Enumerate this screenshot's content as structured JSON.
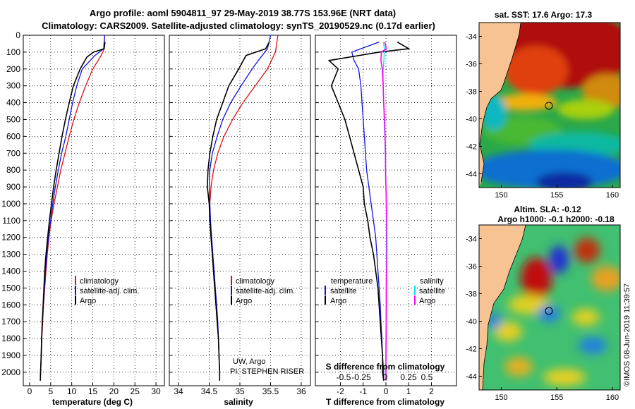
{
  "header": {
    "line1": "Argo profile: aoml 5904811_97 29-May-2019 38.77S 153.96E (NRT data)",
    "line2": "Climatology: CARS2009. Satellite-adjusted climatology: synTS_20190529.nc (0.17d earlier)"
  },
  "colors": {
    "argo": "#000000",
    "climatology": "#e01010",
    "satellite": "#1010e0",
    "salinity_sat": "#00e0e0",
    "salinity_argo": "#ff00ff"
  },
  "chart_data": [
    {
      "type": "line",
      "xlabel": "temperature (deg C)",
      "ylabel": "",
      "xlim": [
        -1.5,
        32
      ],
      "ylim": [
        2080,
        0
      ],
      "xticks": [
        0,
        5,
        10,
        15,
        20,
        25,
        30
      ],
      "yticks": [
        0,
        100,
        200,
        300,
        400,
        500,
        600,
        700,
        800,
        900,
        1000,
        1100,
        1200,
        1300,
        1400,
        1500,
        1600,
        1700,
        1800,
        1900,
        2000
      ],
      "legend": "lower-right",
      "series": [
        {
          "name": "climatology",
          "color": "#e01010",
          "depth": [
            0,
            80,
            120,
            200,
            300,
            400,
            500,
            600,
            700,
            800,
            900,
            1000,
            1100,
            1200,
            1300,
            1400,
            1500,
            1600,
            1700,
            1800,
            1900,
            2000,
            2050
          ],
          "values": [
            17.8,
            17.7,
            17,
            15,
            13.3,
            11.8,
            10.5,
            9.4,
            8.4,
            7.4,
            6.6,
            5.8,
            5.1,
            4.6,
            4.2,
            3.9,
            3.6,
            3.3,
            3.1,
            2.9,
            2.8,
            2.6,
            2.55
          ]
        },
        {
          "name": "satellite-adj. clim.",
          "color": "#1010e0",
          "depth": [
            0,
            80,
            120,
            200,
            300,
            400,
            500,
            600,
            700,
            800,
            900,
            1000,
            1100,
            1200,
            1300,
            1400,
            1500,
            1600,
            1700,
            1800,
            1900,
            2000,
            2050
          ],
          "values": [
            17.8,
            17.6,
            15.5,
            12.5,
            11.2,
            10.2,
            9.4,
            8.6,
            7.6,
            6.8,
            6.1,
            5.5,
            5,
            4.5,
            4.1,
            3.8,
            3.5,
            3.25,
            3,
            2.85,
            2.75,
            2.6,
            2.55
          ]
        },
        {
          "name": "Argo",
          "color": "#000000",
          "depth": [
            40,
            80,
            100,
            130,
            200,
            300,
            400,
            500,
            600,
            700,
            800,
            900,
            1000,
            1100,
            1200,
            1300,
            1400,
            1500,
            1600,
            1700,
            1800,
            1900,
            2000,
            2050
          ],
          "values": [
            17.9,
            17.7,
            15.2,
            13.6,
            12,
            10.4,
            9.4,
            8.5,
            7.7,
            7,
            6.3,
            5.7,
            5.2,
            4.7,
            4.3,
            3.9,
            3.6,
            3.4,
            3.2,
            3,
            2.85,
            2.75,
            2.6,
            2.55
          ]
        }
      ]
    },
    {
      "type": "line",
      "xlabel": "salinity",
      "ylabel": "",
      "xlim": [
        33.85,
        36.15
      ],
      "ylim": [
        2080,
        0
      ],
      "xticks": [
        34,
        34.5,
        35,
        35.5,
        36
      ],
      "yticks": [
        0,
        100,
        200,
        300,
        400,
        500,
        600,
        700,
        800,
        900,
        1000,
        1100,
        1200,
        1300,
        1400,
        1500,
        1600,
        1700,
        1800,
        1900,
        2000
      ],
      "legend": "lower-right",
      "series": [
        {
          "name": "climatology",
          "color": "#e01010",
          "depth": [
            0,
            100,
            200,
            300,
            400,
            500,
            600,
            700,
            800,
            900,
            1000,
            1100,
            1200,
            1300,
            1400,
            1500,
            1600,
            1700,
            1800,
            1900,
            2000,
            2050
          ],
          "values": [
            35.62,
            35.58,
            35.45,
            35.25,
            35.05,
            34.88,
            34.74,
            34.64,
            34.57,
            34.53,
            34.51,
            34.52,
            34.53,
            34.55,
            34.57,
            34.59,
            34.61,
            34.63,
            34.65,
            34.66,
            34.67,
            34.67
          ]
        },
        {
          "name": "satellite-adj. clim.",
          "color": "#1010e0",
          "depth": [
            0,
            80,
            150,
            200,
            300,
            400,
            500,
            600,
            700,
            800,
            900,
            1000,
            1100,
            1200,
            1300,
            1400,
            1500,
            1600,
            1700,
            1800,
            1900,
            2000,
            2050
          ],
          "values": [
            35.5,
            35.45,
            35.3,
            35.2,
            35.02,
            34.85,
            34.72,
            34.63,
            34.55,
            34.51,
            34.5,
            34.51,
            34.52,
            34.54,
            34.56,
            34.58,
            34.6,
            34.62,
            34.64,
            34.65,
            34.66,
            34.67,
            34.67
          ]
        },
        {
          "name": "Argo",
          "color": "#000000",
          "depth": [
            40,
            80,
            120,
            200,
            300,
            400,
            500,
            600,
            700,
            800,
            900,
            1000,
            1100,
            1200,
            1300,
            1400,
            1500,
            1600,
            1700,
            1800,
            1900,
            2000,
            2050
          ],
          "values": [
            35.48,
            35.42,
            35.1,
            34.98,
            34.82,
            34.72,
            34.62,
            34.56,
            34.51,
            34.48,
            34.47,
            34.5,
            34.51,
            34.53,
            34.55,
            34.57,
            34.59,
            34.61,
            34.63,
            34.65,
            34.66,
            34.67,
            34.67
          ]
        }
      ]
    },
    {
      "type": "line",
      "xlabel": "T difference from climatology",
      "ylabel": "",
      "xlim": [
        -3.1,
        3.1
      ],
      "ylim": [
        2080,
        0
      ],
      "xticks": [
        -2,
        -1,
        0,
        1,
        2
      ],
      "s_axis_label": "S difference from climatology",
      "s_ticks": [
        "-0.5",
        "-0.25",
        "0",
        "0.25",
        "0.5"
      ],
      "yticks": [
        0,
        100,
        200,
        300,
        400,
        500,
        600,
        700,
        800,
        900,
        1000,
        1100,
        1200,
        1300,
        1400,
        1500,
        1600,
        1700,
        1800,
        1900,
        2000
      ],
      "legend": "lower",
      "legend_headers": [
        "temperature",
        "salinity"
      ],
      "series": [
        {
          "name": "satellite",
          "group": "temperature",
          "color": "#1010e0",
          "depth": [
            40,
            80,
            100,
            150,
            200,
            300,
            400,
            500,
            600,
            700,
            800,
            900,
            1000,
            1100,
            1200,
            1300,
            1400,
            1500,
            1600,
            1700,
            1800,
            1900,
            2000,
            2050
          ],
          "values": [
            -0.3,
            -1.1,
            -1.5,
            -1.4,
            -1.2,
            -1.1,
            -1.05,
            -1,
            -0.95,
            -0.9,
            -0.85,
            -0.75,
            -0.65,
            -0.55,
            -0.45,
            -0.4,
            -0.35,
            -0.3,
            -0.25,
            -0.22,
            -0.18,
            -0.15,
            -0.1,
            -0.1
          ]
        },
        {
          "name": "Argo",
          "group": "temperature",
          "color": "#000000",
          "depth": [
            40,
            80,
            100,
            150,
            200,
            300,
            400,
            500,
            600,
            700,
            800,
            900,
            1000,
            1100,
            1200,
            1300,
            1400,
            1500,
            1600,
            1700,
            1800,
            1900,
            2000,
            2050
          ],
          "values": [
            0.5,
            1,
            -0.3,
            -2.5,
            -2.1,
            -2.4,
            -2.1,
            -1.8,
            -1.6,
            -1.4,
            -1.2,
            -1,
            -0.95,
            -0.8,
            -0.7,
            -0.55,
            -0.45,
            -0.35,
            -0.3,
            -0.25,
            -0.2,
            -0.15,
            -0.15,
            -0.1
          ]
        },
        {
          "name": "satellite",
          "group": "salinity",
          "color": "#00e0e0",
          "depth": [
            40,
            80,
            150,
            200,
            300,
            400,
            500,
            600,
            700,
            800,
            900,
            1000,
            1100,
            1200,
            1300,
            1400,
            1500,
            1600,
            1700,
            1800,
            1900,
            2000,
            2050
          ],
          "values": [
            -0.11,
            -0.07,
            -0.09,
            -0.12,
            -0.12,
            -0.1,
            -0.08,
            -0.05,
            -0.03,
            -0.01,
            0,
            0.01,
            0.02,
            0.02,
            0.02,
            0.02,
            0.01,
            0.01,
            0.01,
            0,
            0,
            0,
            0
          ]
        },
        {
          "name": "Argo",
          "group": "salinity",
          "color": "#ff00ff",
          "depth": [
            40,
            80,
            100,
            150,
            200,
            300,
            400,
            500,
            600,
            700,
            800,
            900,
            1000,
            1100,
            1200,
            1300,
            1400,
            1500,
            1600,
            1700,
            1800,
            1900,
            2000,
            2050
          ],
          "values": [
            -0.05,
            0.02,
            -0.2,
            -0.22,
            -0.16,
            -0.12,
            -0.1,
            -0.06,
            -0.04,
            -0.02,
            -0.02,
            0,
            0.02,
            0.03,
            0.04,
            0.04,
            0.03,
            0.02,
            0.02,
            0.01,
            0.01,
            0,
            0,
            0
          ]
        }
      ]
    }
  ],
  "legends": {
    "temp": [
      "climatology",
      "satellite-adj. clim.",
      "Argo"
    ],
    "sal": [
      "climatology",
      "satellite-adj. clim.",
      "Argo"
    ],
    "diff_temperature_header": "temperature",
    "diff_salinity_header": "salinity",
    "diff_temp": [
      "satellite",
      "Argo"
    ],
    "diff_sal": [
      "satellite",
      "Argo"
    ]
  },
  "annotation": {
    "line1": "UW, Argo",
    "line2": "PI: STEPHEN RISER"
  },
  "maps": {
    "sst_title": "sat. SST: 17.6 Argo: 17.3",
    "sla_title1": "Altim. SLA: -0.12",
    "sla_title2": "Argo h1000: -0.1 h2000: -0.18",
    "lat_ticks": [
      "-34",
      "-36",
      "-38",
      "-40",
      "-42",
      "-44"
    ],
    "lon_ticks": [
      "150",
      "155",
      "160"
    ],
    "argo_position": {
      "lat": -38.77,
      "lon": 153.96
    }
  },
  "credit": "©IMOS 08-Jun-2019 11:39:57"
}
